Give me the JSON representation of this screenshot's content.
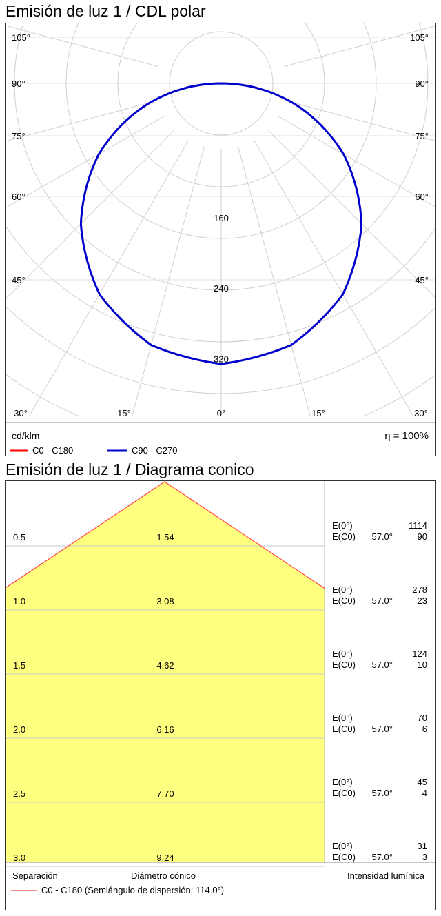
{
  "polar": {
    "title": "Emisión de luz 1 / CDL polar",
    "unit": "cd/klm",
    "efficiency": "η = 100%",
    "legend": [
      {
        "label": "C0 - C180",
        "color": "#ff0000"
      },
      {
        "label": "C90 - C270",
        "color": "#0000cc"
      }
    ],
    "ring_labels": [
      "160",
      "240",
      "320"
    ],
    "angle_labels_side": [
      "105°",
      "90°",
      "75°",
      "60°",
      "45°",
      "30°"
    ],
    "angle_labels_bottom": [
      "30°",
      "15°",
      "0°",
      "15°",
      "30°"
    ]
  },
  "cone": {
    "title": "Emisión de luz 1 / Diagrama conico",
    "footer": {
      "separation": "Separación",
      "diameter": "Diámetro cónico",
      "intensity": "Intensidad lumínica"
    },
    "legend_label": "C0 - C180 (Semiángulo de dispersión: 114.0°)",
    "legend_color": "#ff4444",
    "fill_color": "#ffff80",
    "rows": [
      {
        "distance": "0.5",
        "diameter": "1.54",
        "e0_label": "E(0°)",
        "e0": "1114",
        "ec0_label": "E(C0)",
        "angle": "57.0°",
        "ec0": "90"
      },
      {
        "distance": "1.0",
        "diameter": "3.08",
        "e0_label": "E(0°)",
        "e0": "278",
        "ec0_label": "E(C0)",
        "angle": "57.0°",
        "ec0": "23"
      },
      {
        "distance": "1.5",
        "diameter": "4.62",
        "e0_label": "E(0°)",
        "e0": "124",
        "ec0_label": "E(C0)",
        "angle": "57.0°",
        "ec0": "10"
      },
      {
        "distance": "2.0",
        "diameter": "6.16",
        "e0_label": "E(0°)",
        "e0": "70",
        "ec0_label": "E(C0)",
        "angle": "57.0°",
        "ec0": "6"
      },
      {
        "distance": "2.5",
        "diameter": "7.70",
        "e0_label": "E(0°)",
        "e0": "45",
        "ec0_label": "E(C0)",
        "angle": "57.0°",
        "ec0": "4"
      },
      {
        "distance": "3.0",
        "diameter": "9.24",
        "e0_label": "E(0°)",
        "e0": "31",
        "ec0_label": "E(C0)",
        "angle": "57.0°",
        "ec0": "3"
      }
    ]
  },
  "chart_data": [
    {
      "type": "polar",
      "title": "Emisión de luz 1 / CDL polar",
      "unit": "cd/klm",
      "r_ticks": [
        160,
        240,
        320
      ],
      "series": [
        {
          "name": "C90 - C270",
          "color": "#0000cc",
          "angles": [
            0,
            15,
            30,
            45,
            60,
            75,
            90
          ],
          "values": [
            318,
            307,
            276,
            225,
            160,
            83,
            0
          ]
        }
      ]
    },
    {
      "type": "table",
      "title": "Emisión de luz 1 / Diagrama conico",
      "columns": [
        "Separación",
        "Diámetro cónico",
        "E(0°)",
        "E(C0)"
      ],
      "half_angle": 57.0,
      "rows": [
        [
          0.5,
          1.54,
          1114,
          90
        ],
        [
          1.0,
          3.08,
          278,
          23
        ],
        [
          1.5,
          4.62,
          124,
          10
        ],
        [
          2.0,
          6.16,
          70,
          6
        ],
        [
          2.5,
          7.7,
          45,
          4
        ],
        [
          3.0,
          9.24,
          31,
          3
        ]
      ]
    }
  ]
}
